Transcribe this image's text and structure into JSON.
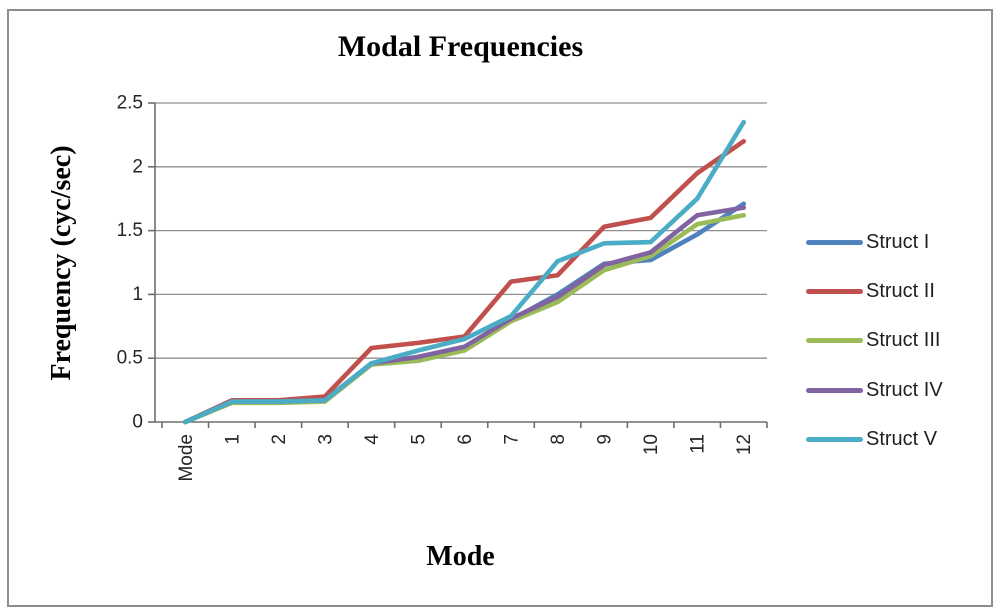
{
  "chart_data": {
    "type": "line",
    "title": "Modal Frequencies",
    "xlabel": "Mode",
    "ylabel": "Frequency (cyc/sec)",
    "categories": [
      "Mode",
      "1",
      "2",
      "3",
      "4",
      "5",
      "6",
      "7",
      "8",
      "9",
      "10",
      "11",
      "12"
    ],
    "y_tick_labels": [
      "0",
      "0.5",
      "1",
      "1.5",
      "2",
      "2.5"
    ],
    "ylim": [
      0,
      2.5
    ],
    "grid": "horizontal",
    "legend_position": "right",
    "series": [
      {
        "name": "Struct I",
        "color": "#4F81BD",
        "values": [
          0,
          0.16,
          0.16,
          0.17,
          0.46,
          0.48,
          0.57,
          0.8,
          1.0,
          1.24,
          1.27,
          1.47,
          1.71
        ]
      },
      {
        "name": "Struct II",
        "color": "#C0504D",
        "values": [
          0,
          0.17,
          0.17,
          0.2,
          0.58,
          0.62,
          0.67,
          1.1,
          1.15,
          1.53,
          1.6,
          1.95,
          2.2
        ]
      },
      {
        "name": "Struct III",
        "color": "#9BBB59",
        "values": [
          0,
          0.15,
          0.15,
          0.16,
          0.45,
          0.48,
          0.56,
          0.79,
          0.94,
          1.19,
          1.3,
          1.55,
          1.62
        ]
      },
      {
        "name": "Struct IV",
        "color": "#8064A2",
        "values": [
          0,
          0.16,
          0.16,
          0.17,
          0.46,
          0.51,
          0.59,
          0.81,
          0.98,
          1.23,
          1.33,
          1.62,
          1.68
        ]
      },
      {
        "name": "Struct V",
        "color": "#4BACC6",
        "values": [
          0,
          0.16,
          0.16,
          0.17,
          0.46,
          0.56,
          0.65,
          0.83,
          1.26,
          1.4,
          1.41,
          1.75,
          2.35
        ]
      }
    ]
  },
  "styles": {
    "background": "#ffffff",
    "frame_border_color": "#8c8c8c",
    "gridline_color": "#8f8f8f",
    "axis_color": "#6e6e6e",
    "tick_label_color": "#262626",
    "title_color": "#000000"
  }
}
